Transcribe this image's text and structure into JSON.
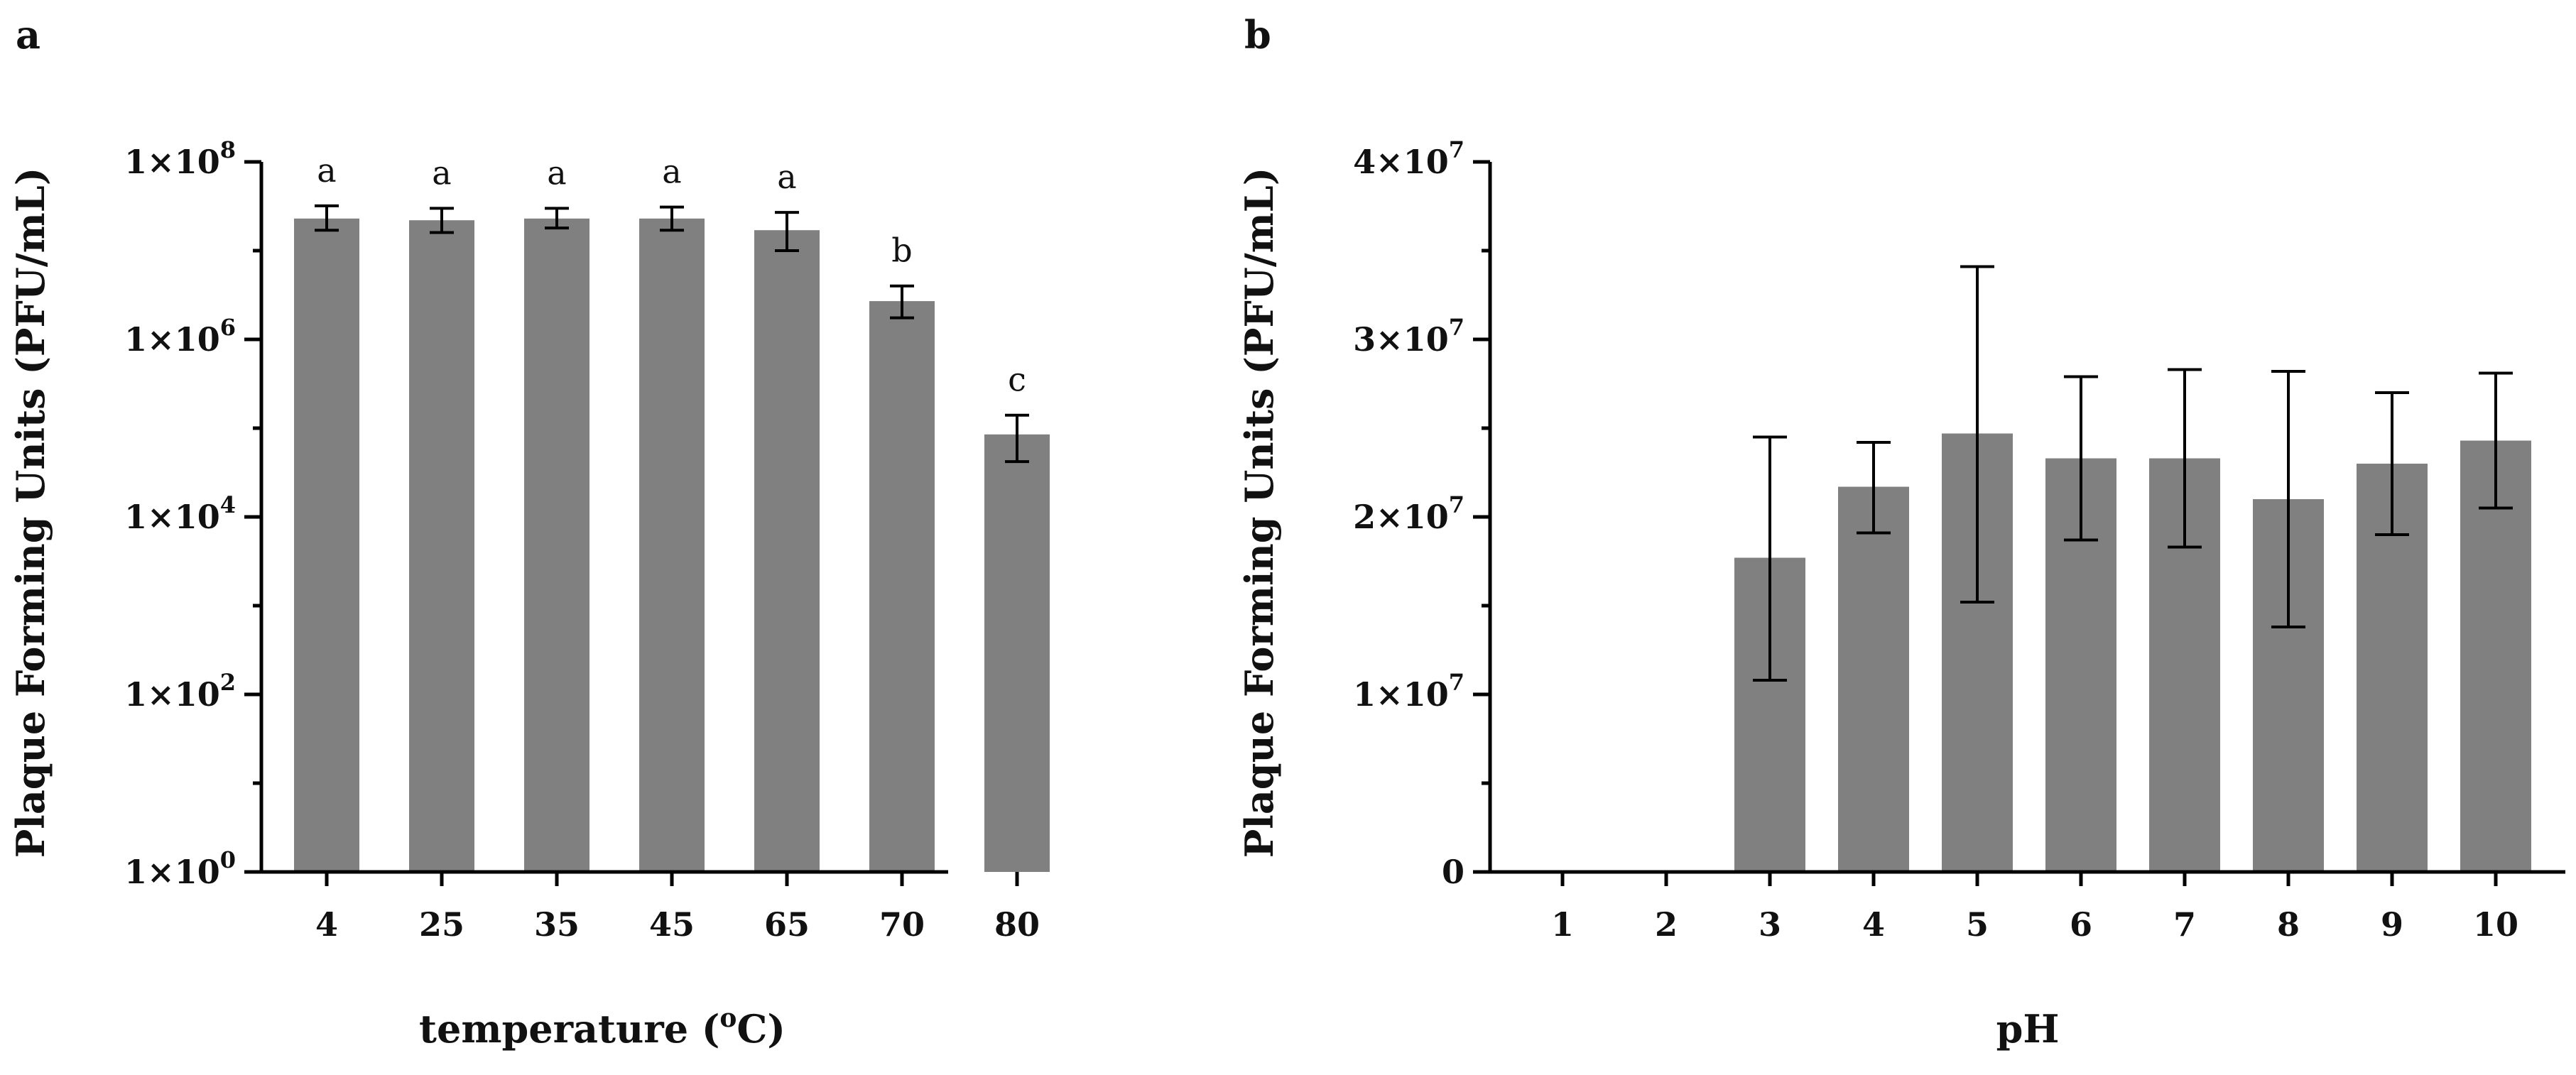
{
  "chart_data": [
    {
      "panel": "a",
      "type": "bar",
      "yscale": "log",
      "xlabel": "temperature (",
      "xlabel_sup": "o",
      "xlabel_end": "C)",
      "ylabel": "Plaque Forming Units (PFU/mL)",
      "categories": [
        "4",
        "25",
        "35",
        "45",
        "65",
        "70",
        "80"
      ],
      "values": [
        23000000.0,
        22000000.0,
        23000000.0,
        23000000.0,
        17000000.0,
        2700000.0,
        85000.0
      ],
      "err_low": [
        17000000.0,
        16000000.0,
        18000000.0,
        17000000.0,
        10000000.0,
        1750000.0,
        42000.0
      ],
      "err_high": [
        32000000.0,
        30000000.0,
        30000000.0,
        31000000.0,
        27000000.0,
        4000000.0,
        140000.0
      ],
      "significance": [
        "a",
        "a",
        "a",
        "a",
        "a",
        "b",
        "c"
      ],
      "ylim_exp": [
        0,
        8
      ],
      "yticks": [
        {
          "exp": 0,
          "base": "1×10",
          "sup": "0"
        },
        {
          "exp": 2,
          "base": "1×10",
          "sup": "2"
        },
        {
          "exp": 4,
          "base": "1×10",
          "sup": "4"
        },
        {
          "exp": 6,
          "base": "1×10",
          "sup": "6"
        },
        {
          "exp": 8,
          "base": "1×10",
          "sup": "8"
        }
      ]
    },
    {
      "panel": "b",
      "type": "bar",
      "yscale": "linear",
      "xlabel": "pH",
      "ylabel": "Plaque Forming Units (PFU/mL)",
      "categories": [
        "1",
        "2",
        "3",
        "4",
        "5",
        "6",
        "7",
        "8",
        "9",
        "10"
      ],
      "values": [
        0,
        0,
        17700000.0,
        21700000.0,
        24700000.0,
        23300000.0,
        23300000.0,
        21000000.0,
        23000000.0,
        24300000.0
      ],
      "err_low": [
        null,
        null,
        10800000.0,
        19100000.0,
        15200000.0,
        18700000.0,
        18300000.0,
        13800000.0,
        19000000.0,
        20500000.0
      ],
      "err_high": [
        null,
        null,
        24500000.0,
        24200000.0,
        34100000.0,
        27900000.0,
        28300000.0,
        28200000.0,
        27000000.0,
        28100000.0
      ],
      "ylim": [
        0,
        40000000.0
      ],
      "yticks": [
        {
          "value": 0,
          "base": "0",
          "sup": ""
        },
        {
          "value": 10000000.0,
          "base": "1×10",
          "sup": "7"
        },
        {
          "value": 20000000.0,
          "base": "2×10",
          "sup": "7"
        },
        {
          "value": 30000000.0,
          "base": "3×10",
          "sup": "7"
        },
        {
          "value": 40000000.0,
          "base": "4×10",
          "sup": "7"
        }
      ]
    }
  ]
}
